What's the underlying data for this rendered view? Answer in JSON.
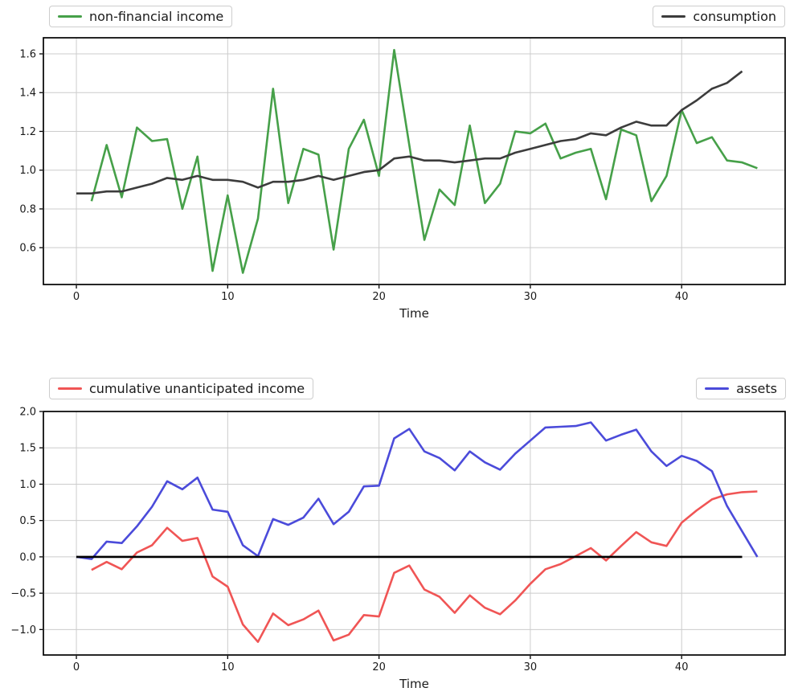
{
  "palette": {
    "background": "#ffffff",
    "grid": "#cccccc",
    "frame": "#000000",
    "text": "#1a1a1a",
    "income_green": "#46a049",
    "consumption_dark": "#3c3c3c",
    "cum_income_red": "#f05555",
    "assets_blue": "#4b4bda",
    "zero_line_black": "#000000"
  },
  "chart_data": [
    {
      "type": "line",
      "title": "",
      "xlabel": "Time",
      "ylabel": "",
      "grid": true,
      "xlim": [
        -2.18,
        46.84
      ],
      "ylim": [
        0.41,
        1.683
      ],
      "xticks": [
        0,
        10,
        20,
        30,
        40
      ],
      "xticklabels": [
        "0",
        "10",
        "20",
        "30",
        "40"
      ],
      "yticks": [
        0.6,
        0.8,
        1.0,
        1.2,
        1.4,
        1.6
      ],
      "yticklabels": [
        "0.6",
        "0.8",
        "1.0",
        "1.2",
        "1.4",
        "1.6"
      ],
      "legend_position": "above axes, left and right",
      "series": [
        {
          "name": "non-financial income",
          "color": "#46a049",
          "x_start": 1,
          "values": [
            0.84,
            1.13,
            0.86,
            1.22,
            1.15,
            1.16,
            0.8,
            1.07,
            0.48,
            0.87,
            0.47,
            0.75,
            1.42,
            0.83,
            1.11,
            1.08,
            0.59,
            1.11,
            1.26,
            0.97,
            1.62,
            1.13,
            0.64,
            0.9,
            0.82,
            1.23,
            0.83,
            0.93,
            1.2,
            1.19,
            1.24,
            1.06,
            1.09,
            1.11,
            0.85,
            1.21,
            1.18,
            0.84,
            0.97,
            1.31,
            1.14,
            1.17,
            1.05,
            1.04,
            1.01
          ]
        },
        {
          "name": "consumption",
          "color": "#3c3c3c",
          "x_start": 0,
          "values": [
            0.88,
            0.88,
            0.89,
            0.89,
            0.91,
            0.93,
            0.96,
            0.95,
            0.97,
            0.95,
            0.95,
            0.94,
            0.91,
            0.94,
            0.94,
            0.95,
            0.97,
            0.95,
            0.97,
            0.99,
            1.0,
            1.06,
            1.07,
            1.05,
            1.05,
            1.04,
            1.05,
            1.06,
            1.06,
            1.09,
            1.11,
            1.13,
            1.15,
            1.16,
            1.19,
            1.18,
            1.22,
            1.25,
            1.23,
            1.23,
            1.31,
            1.36,
            1.42,
            1.45,
            1.51
          ]
        }
      ]
    },
    {
      "type": "line",
      "title": "",
      "xlabel": "Time",
      "ylabel": "",
      "grid": true,
      "xlim": [
        -2.18,
        46.84
      ],
      "ylim": [
        -1.35,
        2.0
      ],
      "xticks": [
        0,
        10,
        20,
        30,
        40
      ],
      "xticklabels": [
        "0",
        "10",
        "20",
        "30",
        "40"
      ],
      "yticks": [
        -1.0,
        -0.5,
        0.0,
        0.5,
        1.0,
        1.5,
        2.0
      ],
      "yticklabels": [
        "−1.0",
        "−0.5",
        "0.0",
        "0.5",
        "1.0",
        "1.5",
        "2.0"
      ],
      "legend_position": "above axes, left and right",
      "series": [
        {
          "name": "cumulative unanticipated income",
          "color": "#f05555",
          "x_start": 1,
          "values": [
            -0.18,
            -0.07,
            -0.17,
            0.06,
            0.16,
            0.4,
            0.22,
            0.26,
            -0.27,
            -0.41,
            -0.93,
            -1.17,
            -0.78,
            -0.94,
            -0.86,
            -0.74,
            -1.15,
            -1.07,
            -0.8,
            -0.82,
            -0.22,
            -0.12,
            -0.45,
            -0.55,
            -0.77,
            -0.53,
            -0.7,
            -0.79,
            -0.6,
            -0.37,
            -0.17,
            -0.1,
            0.01,
            0.12,
            -0.05,
            0.15,
            0.34,
            0.2,
            0.15,
            0.47,
            0.64,
            0.79,
            0.86,
            0.89,
            0.9
          ]
        },
        {
          "name": "assets",
          "color": "#4b4bda",
          "x_start": 0,
          "values": [
            0.0,
            -0.03,
            0.21,
            0.19,
            0.42,
            0.69,
            1.04,
            0.93,
            1.09,
            0.65,
            0.62,
            0.16,
            0.01,
            0.52,
            0.44,
            0.54,
            0.8,
            0.45,
            0.62,
            0.97,
            0.98,
            1.63,
            1.76,
            1.45,
            1.36,
            1.19,
            1.45,
            1.3,
            1.2,
            1.42,
            1.6,
            1.78,
            1.79,
            1.8,
            1.85,
            1.6,
            1.68,
            1.75,
            1.45,
            1.25,
            1.39,
            1.32,
            1.18,
            0.7,
            0.35,
            0.0
          ]
        },
        {
          "name": "zero-baseline",
          "color": "#000000",
          "x": [
            0,
            44
          ],
          "values": [
            0,
            0
          ]
        }
      ]
    }
  ]
}
